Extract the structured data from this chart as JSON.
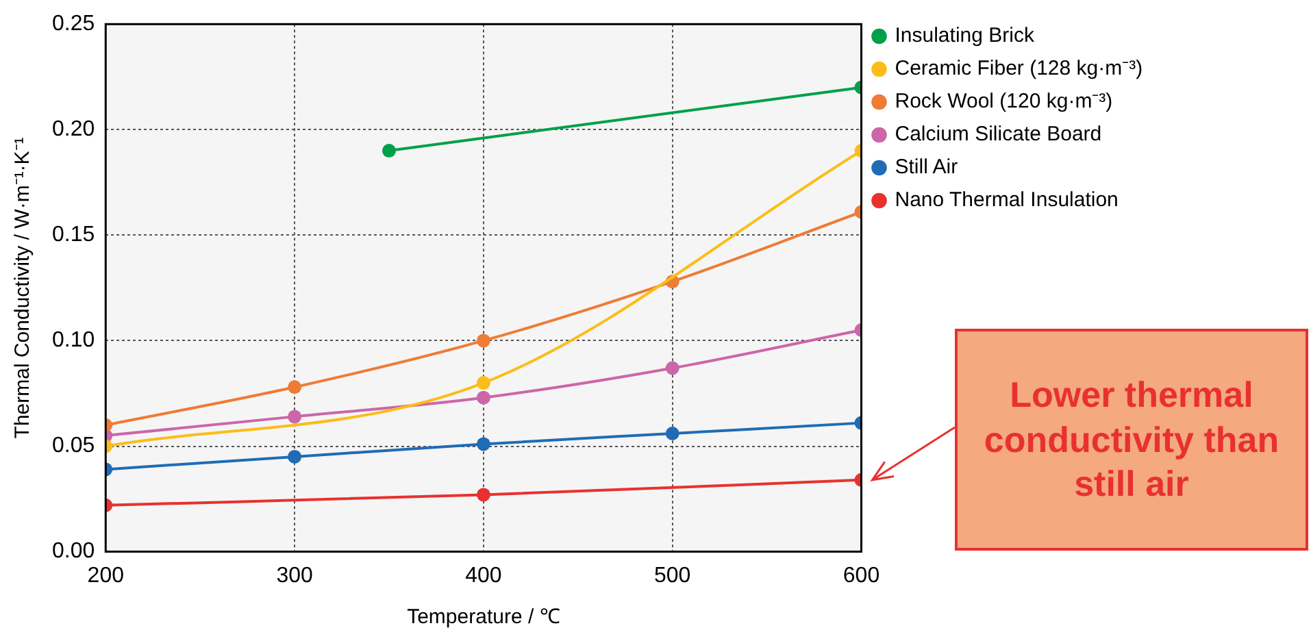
{
  "chart_data": {
    "type": "line",
    "xlabel": "Temperature / ℃",
    "ylabel": "Thermal Conductivity / W·m⁻¹·K⁻¹",
    "xlim": [
      200,
      600
    ],
    "xticks": [
      200,
      300,
      400,
      500,
      600
    ],
    "ylim": [
      0,
      0.25
    ],
    "yticks": [
      {
        "value": 0,
        "label": "0.00"
      },
      {
        "value": 0.05,
        "label": "0.05"
      },
      {
        "value": 0.1,
        "label": "0.10"
      },
      {
        "value": 0.15,
        "label": "0.15"
      },
      {
        "value": 0.2,
        "label": "0.20"
      },
      {
        "value": 0.25,
        "label": "0.25"
      }
    ],
    "grid": true,
    "legend": "top right",
    "marker": "circle",
    "line_style": "solid",
    "series": [
      {
        "name": "Insulating Brick",
        "color": "#00a04a",
        "x": [
          350,
          600
        ],
        "values": [
          0.19,
          0.22
        ]
      },
      {
        "name": "Ceramic Fiber (128 kg·m⁻³)",
        "color": "#fbbd19",
        "x": [
          200,
          400,
          600
        ],
        "values": [
          0.05,
          0.08,
          0.19
        ]
      },
      {
        "name": "Rock Wool (120 kg·m⁻³)",
        "color": "#ee7c35",
        "x": [
          200,
          300,
          400,
          500,
          600
        ],
        "values": [
          0.06,
          0.078,
          0.1,
          0.128,
          0.161
        ]
      },
      {
        "name": "Calcium Silicate Board",
        "color": "#cc66a8",
        "x": [
          200,
          300,
          400,
          500,
          600
        ],
        "values": [
          0.055,
          0.064,
          0.073,
          0.087,
          0.105
        ]
      },
      {
        "name": "Still Air",
        "color": "#1f6cb5",
        "x": [
          200,
          300,
          400,
          500,
          600
        ],
        "values": [
          0.039,
          0.045,
          0.051,
          0.056,
          0.061
        ]
      },
      {
        "name": "Nano Thermal Insulation",
        "color": "#e8312f",
        "x": [
          200,
          400,
          600
        ],
        "values": [
          0.022,
          0.027,
          0.034
        ]
      }
    ],
    "annotations": [
      {
        "text": "Lower thermal conductivity than still air",
        "x": 600,
        "y": 0.034
      }
    ]
  }
}
